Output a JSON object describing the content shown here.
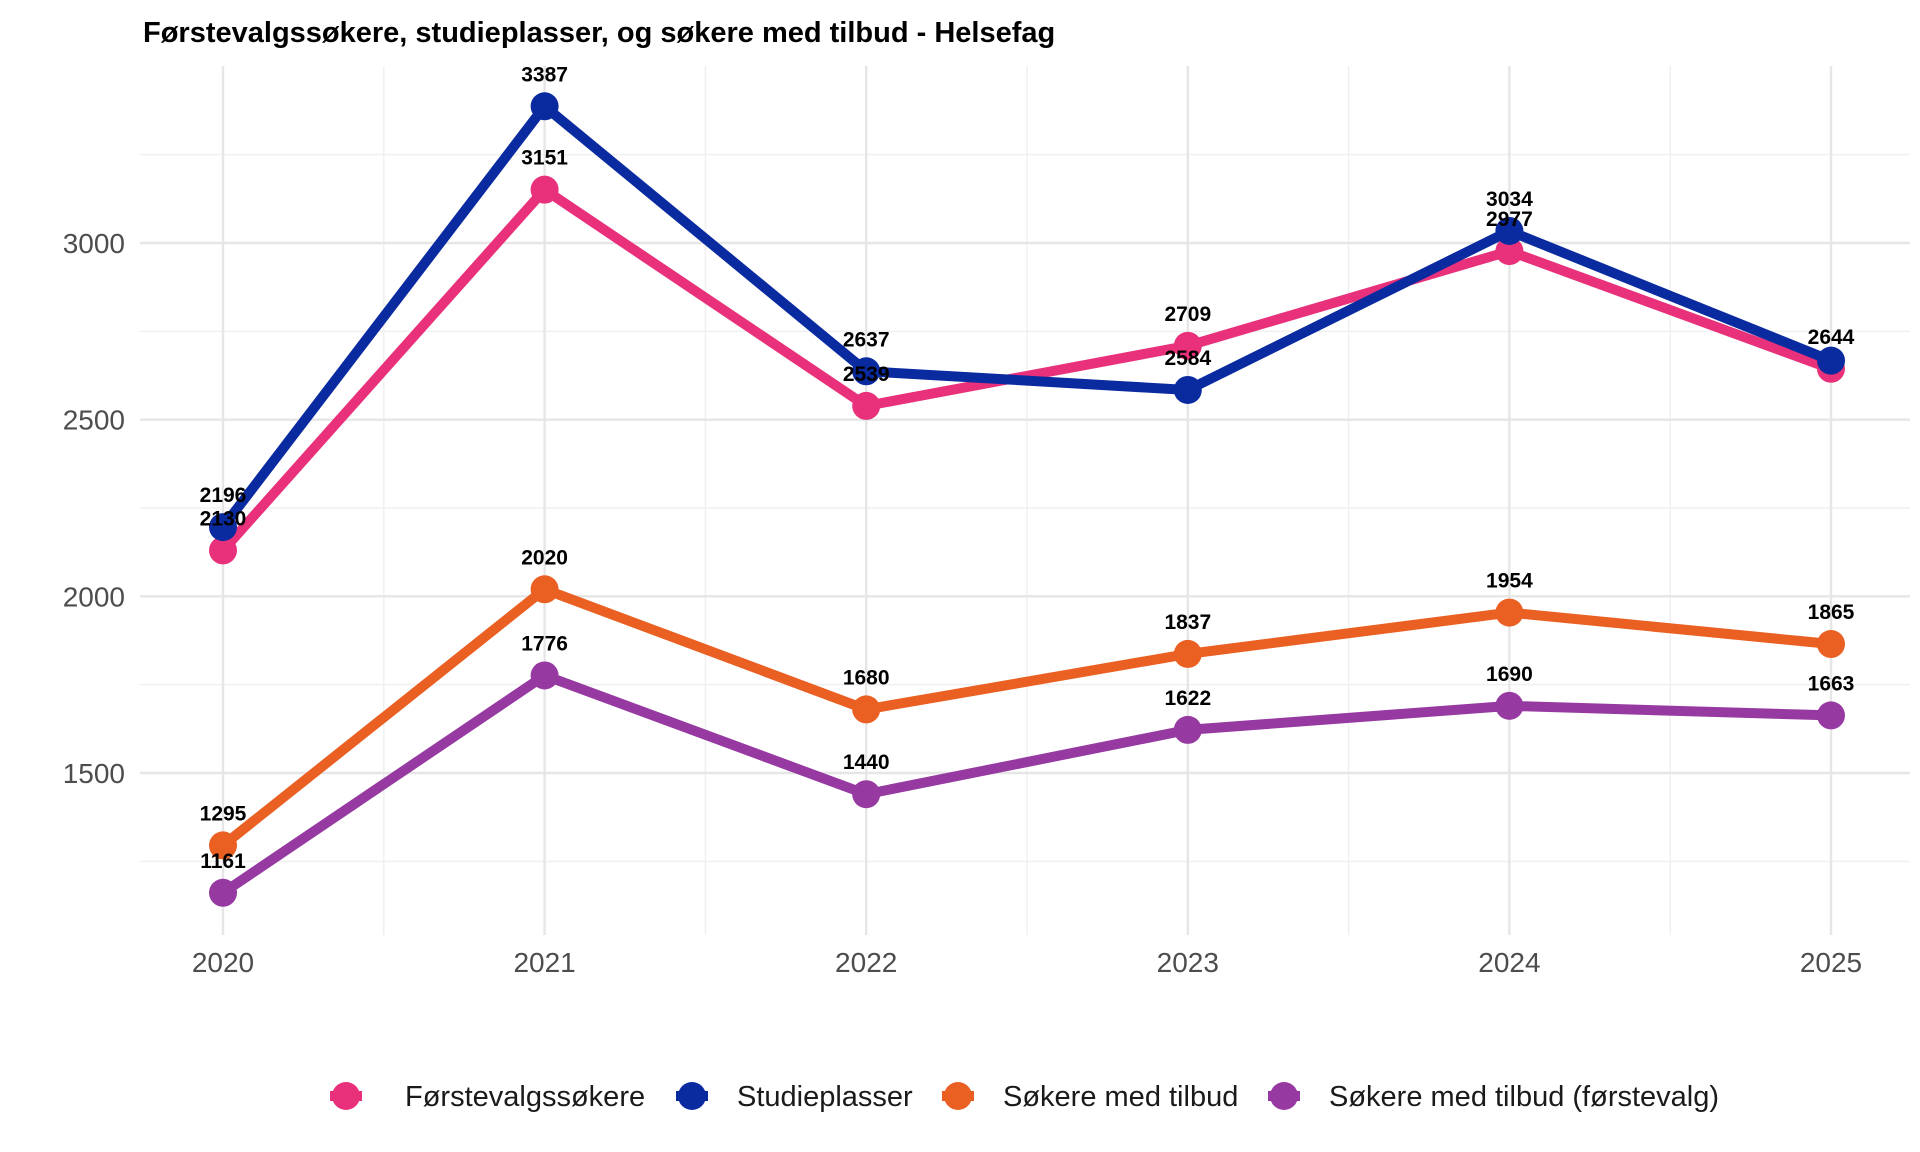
{
  "chart_data": {
    "type": "line",
    "title": "Førstevalgssøkere, studieplasser, og søkere med tilbud - Helsefag",
    "xlabel": "",
    "ylabel": "",
    "x": [
      "2020",
      "2021",
      "2022",
      "2023",
      "2024",
      "2025"
    ],
    "yticks": [
      1500,
      2000,
      2500,
      3000
    ],
    "ylim": [
      1110,
      3480
    ],
    "grid": true,
    "legend_position": "bottom",
    "series": [
      {
        "name": "Førstevalgssøkere",
        "color": "#e8317a",
        "values": [
          2130,
          3151,
          2539,
          2709,
          2977,
          2644
        ]
      },
      {
        "name": "Studieplasser",
        "color": "#0a2aa0",
        "values": [
          2196,
          3387,
          2637,
          2584,
          3034,
          2667
        ]
      },
      {
        "name": "Søkere med tilbud",
        "color": "#ea5f22",
        "values": [
          1295,
          2020,
          1680,
          1837,
          1954,
          1865
        ]
      },
      {
        "name": "Søkere med tilbud (førstevalg)",
        "color": "#963aa2",
        "values": [
          1161,
          1776,
          1440,
          1622,
          1690,
          1663
        ]
      }
    ],
    "data_labels": [
      {
        "x": "2020",
        "series": "Studieplasser",
        "text": "2196"
      },
      {
        "x": "2020",
        "series": "Førstevalgssøkere",
        "text": "2130"
      },
      {
        "x": "2021",
        "series": "Studieplasser",
        "text": "3387"
      },
      {
        "x": "2021",
        "series": "Førstevalgssøkere",
        "text": "3151"
      },
      {
        "x": "2022",
        "series": "Studieplasser",
        "text": "2637"
      },
      {
        "x": "2022",
        "series": "Førstevalgssøkere",
        "text": "2539"
      },
      {
        "x": "2023",
        "series": "Førstevalgssøkere",
        "text": "2709"
      },
      {
        "x": "2023",
        "series": "Studieplasser",
        "text": "2584"
      },
      {
        "x": "2024",
        "series": "Studieplasser",
        "text": "3034"
      },
      {
        "x": "2024",
        "series": "Førstevalgssøkere",
        "text": "2977"
      },
      {
        "x": "2025",
        "series": "Førstevalgssøkere",
        "text": "2644"
      },
      {
        "x": "2020",
        "series": "Søkere med tilbud",
        "text": "1295"
      },
      {
        "x": "2021",
        "series": "Søkere med tilbud",
        "text": "2020"
      },
      {
        "x": "2022",
        "series": "Søkere med tilbud",
        "text": "1680"
      },
      {
        "x": "2023",
        "series": "Søkere med tilbud",
        "text": "1837"
      },
      {
        "x": "2024",
        "series": "Søkere med tilbud",
        "text": "1954"
      },
      {
        "x": "2025",
        "series": "Søkere med tilbud",
        "text": "1865"
      },
      {
        "x": "2020",
        "series": "Søkere med tilbud (førstevalg)",
        "text": "1161"
      },
      {
        "x": "2021",
        "series": "Søkere med tilbud (førstevalg)",
        "text": "1776"
      },
      {
        "x": "2022",
        "series": "Søkere med tilbud (førstevalg)",
        "text": "1440"
      },
      {
        "x": "2023",
        "series": "Søkere med tilbud (førstevalg)",
        "text": "1622"
      },
      {
        "x": "2024",
        "series": "Søkere med tilbud (førstevalg)",
        "text": "1690"
      },
      {
        "x": "2025",
        "series": "Søkere med tilbud (førstevalg)",
        "text": "1663"
      }
    ]
  }
}
